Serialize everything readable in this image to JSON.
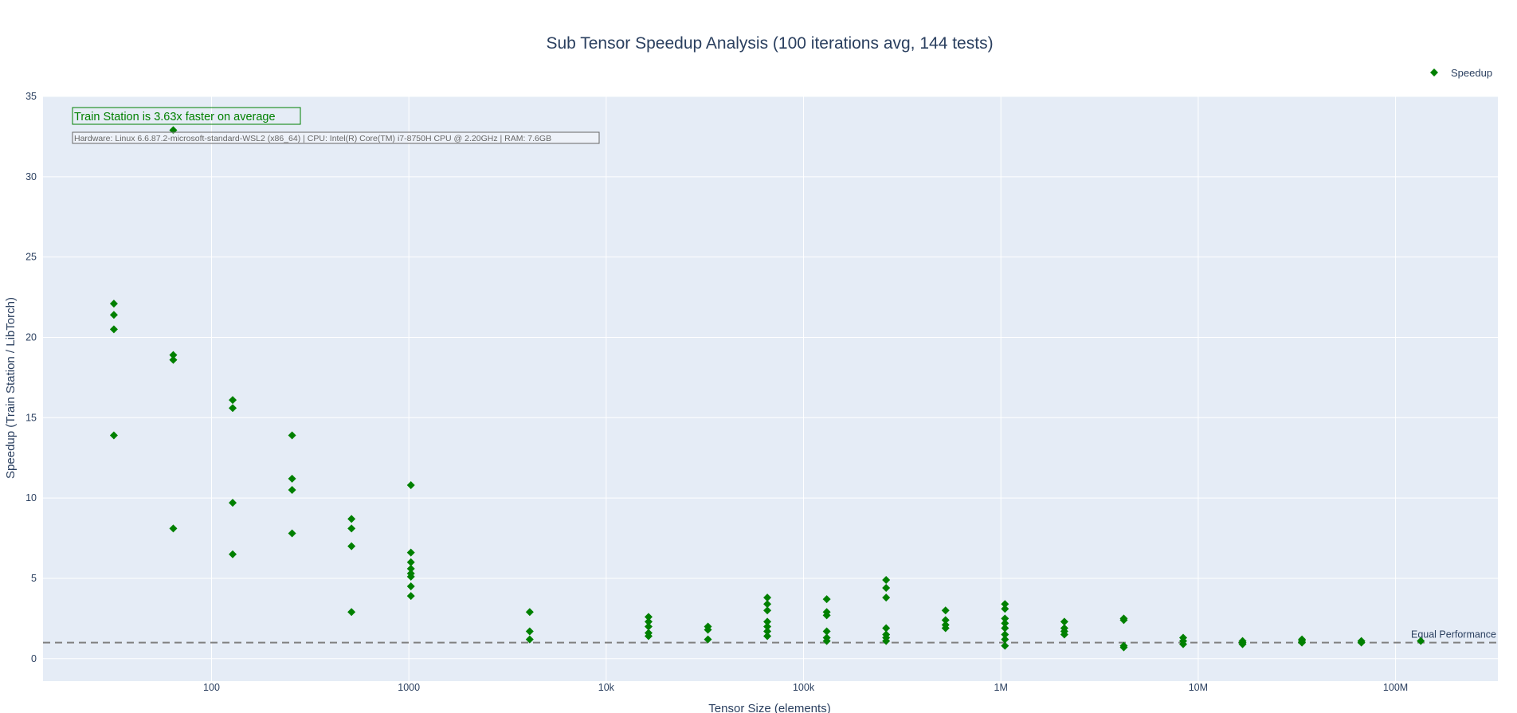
{
  "chart_data": {
    "type": "scatter",
    "title": "Sub Tensor Speedup Analysis (100 iterations avg, 144 tests)",
    "xlabel": "Tensor Size (elements)",
    "ylabel": "Speedup (Train Station / LibTorch)",
    "x_scale": "log",
    "x_range": [
      14,
      330000000
    ],
    "y_range": [
      -1.4,
      35
    ],
    "x_ticks": [
      {
        "value": 100,
        "label": "100"
      },
      {
        "value": 1000,
        "label": "1000"
      },
      {
        "value": 10000,
        "label": "10k"
      },
      {
        "value": 100000,
        "label": "100k"
      },
      {
        "value": 1000000,
        "label": "1M"
      },
      {
        "value": 10000000,
        "label": "10M"
      },
      {
        "value": 100000000,
        "label": "100M"
      }
    ],
    "y_ticks": [
      0,
      5,
      10,
      15,
      20,
      25,
      30,
      35
    ],
    "grid": true,
    "legend": {
      "position": "top-right"
    },
    "marker_color": "#008000",
    "plot_bg": "#e5ecf6",
    "series": [
      {
        "name": "Speedup",
        "points": [
          [
            32,
            22.1
          ],
          [
            32,
            21.4
          ],
          [
            32,
            20.5
          ],
          [
            32,
            13.9
          ],
          [
            64,
            32.9
          ],
          [
            64,
            18.9
          ],
          [
            64,
            18.6
          ],
          [
            64,
            8.1
          ],
          [
            128,
            16.1
          ],
          [
            128,
            15.6
          ],
          [
            128,
            9.7
          ],
          [
            128,
            6.5
          ],
          [
            256,
            13.9
          ],
          [
            256,
            11.2
          ],
          [
            256,
            10.5
          ],
          [
            256,
            7.8
          ],
          [
            512,
            8.7
          ],
          [
            512,
            8.1
          ],
          [
            512,
            7.0
          ],
          [
            512,
            2.9
          ],
          [
            1024,
            10.8
          ],
          [
            1024,
            6.6
          ],
          [
            1024,
            6.0
          ],
          [
            1024,
            5.6
          ],
          [
            1024,
            5.3
          ],
          [
            1024,
            5.1
          ],
          [
            1024,
            4.5
          ],
          [
            1024,
            3.9
          ],
          [
            4096,
            2.9
          ],
          [
            4096,
            1.7
          ],
          [
            4096,
            1.2
          ],
          [
            16384,
            2.6
          ],
          [
            16384,
            2.3
          ],
          [
            16384,
            2.0
          ],
          [
            16384,
            1.6
          ],
          [
            16384,
            1.4
          ],
          [
            32768,
            2.0
          ],
          [
            32768,
            1.8
          ],
          [
            32768,
            1.2
          ],
          [
            65536,
            3.8
          ],
          [
            65536,
            3.4
          ],
          [
            65536,
            3.0
          ],
          [
            65536,
            2.3
          ],
          [
            65536,
            2.0
          ],
          [
            65536,
            1.7
          ],
          [
            65536,
            1.4
          ],
          [
            131072,
            3.7
          ],
          [
            131072,
            2.9
          ],
          [
            131072,
            2.7
          ],
          [
            131072,
            1.7
          ],
          [
            131072,
            1.3
          ],
          [
            131072,
            1.1
          ],
          [
            262144,
            4.9
          ],
          [
            262144,
            4.4
          ],
          [
            262144,
            3.8
          ],
          [
            262144,
            1.9
          ],
          [
            262144,
            1.5
          ],
          [
            262144,
            1.3
          ],
          [
            262144,
            1.1
          ],
          [
            524288,
            3.0
          ],
          [
            524288,
            2.4
          ],
          [
            524288,
            2.1
          ],
          [
            524288,
            1.9
          ],
          [
            1048576,
            3.4
          ],
          [
            1048576,
            3.1
          ],
          [
            1048576,
            2.5
          ],
          [
            1048576,
            2.2
          ],
          [
            1048576,
            1.9
          ],
          [
            1048576,
            1.5
          ],
          [
            1048576,
            1.2
          ],
          [
            1048576,
            0.8
          ],
          [
            2097152,
            2.3
          ],
          [
            2097152,
            1.9
          ],
          [
            2097152,
            1.7
          ],
          [
            2097152,
            1.5
          ],
          [
            4194304,
            2.5
          ],
          [
            4194304,
            2.4
          ],
          [
            4194304,
            0.8
          ],
          [
            4194304,
            0.7
          ],
          [
            8388608,
            1.3
          ],
          [
            8388608,
            1.1
          ],
          [
            8388608,
            0.9
          ],
          [
            16777216,
            1.1
          ],
          [
            16777216,
            1.0
          ],
          [
            16777216,
            0.9
          ],
          [
            33554432,
            1.2
          ],
          [
            33554432,
            1.1
          ],
          [
            33554432,
            1.0
          ],
          [
            67108864,
            1.1
          ],
          [
            67108864,
            1.0
          ],
          [
            134217728,
            1.1
          ]
        ]
      }
    ],
    "reference_line": {
      "y": 1,
      "label": "Equal Performance",
      "style": "dashed",
      "color": "#808080"
    },
    "annotations": [
      "Train Station is 3.63x faster on average",
      "Hardware: Linux 6.6.87.2-microsoft-standard-WSL2 (x86_64) | CPU: Intel(R) Core(TM) i7-8750H CPU @ 2.20GHz | RAM: 7.6GB"
    ]
  }
}
